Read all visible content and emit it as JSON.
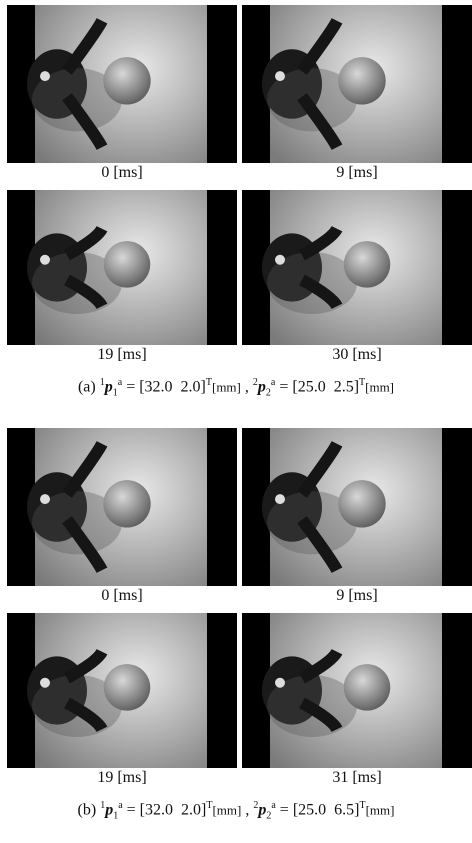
{
  "panels": [
    {
      "label": "(a)",
      "sep": ",",
      "frames": [
        "0 [ms]",
        "9 [ms]",
        "19 [ms]",
        "30 [ms]"
      ],
      "eq": [
        {
          "pre": "1",
          "sym": "p",
          "sub": "1",
          "sup": "a",
          "op": "=",
          "vec": "[32.0  2.0]",
          "t": "T",
          "unit": "[mm]"
        },
        {
          "pre": "2",
          "sym": "p",
          "sub": "2",
          "sup": "a",
          "op": "=",
          "vec": "[25.0  2.5]",
          "t": "T",
          "unit": "[mm]"
        }
      ]
    },
    {
      "label": "(b)",
      "sep": ",",
      "frames": [
        "0 [ms]",
        "9 [ms]",
        "19 [ms]",
        "31 [ms]"
      ],
      "eq": [
        {
          "pre": "1",
          "sym": "p",
          "sub": "1",
          "sup": "a",
          "op": "=",
          "vec": "[32.0  2.0]",
          "t": "T",
          "unit": "[mm]"
        },
        {
          "pre": "2",
          "sym": "p",
          "sub": "2",
          "sup": "a",
          "op": "=",
          "vec": "[25.0  6.5]",
          "t": "T",
          "unit": "[mm]"
        }
      ]
    }
  ]
}
